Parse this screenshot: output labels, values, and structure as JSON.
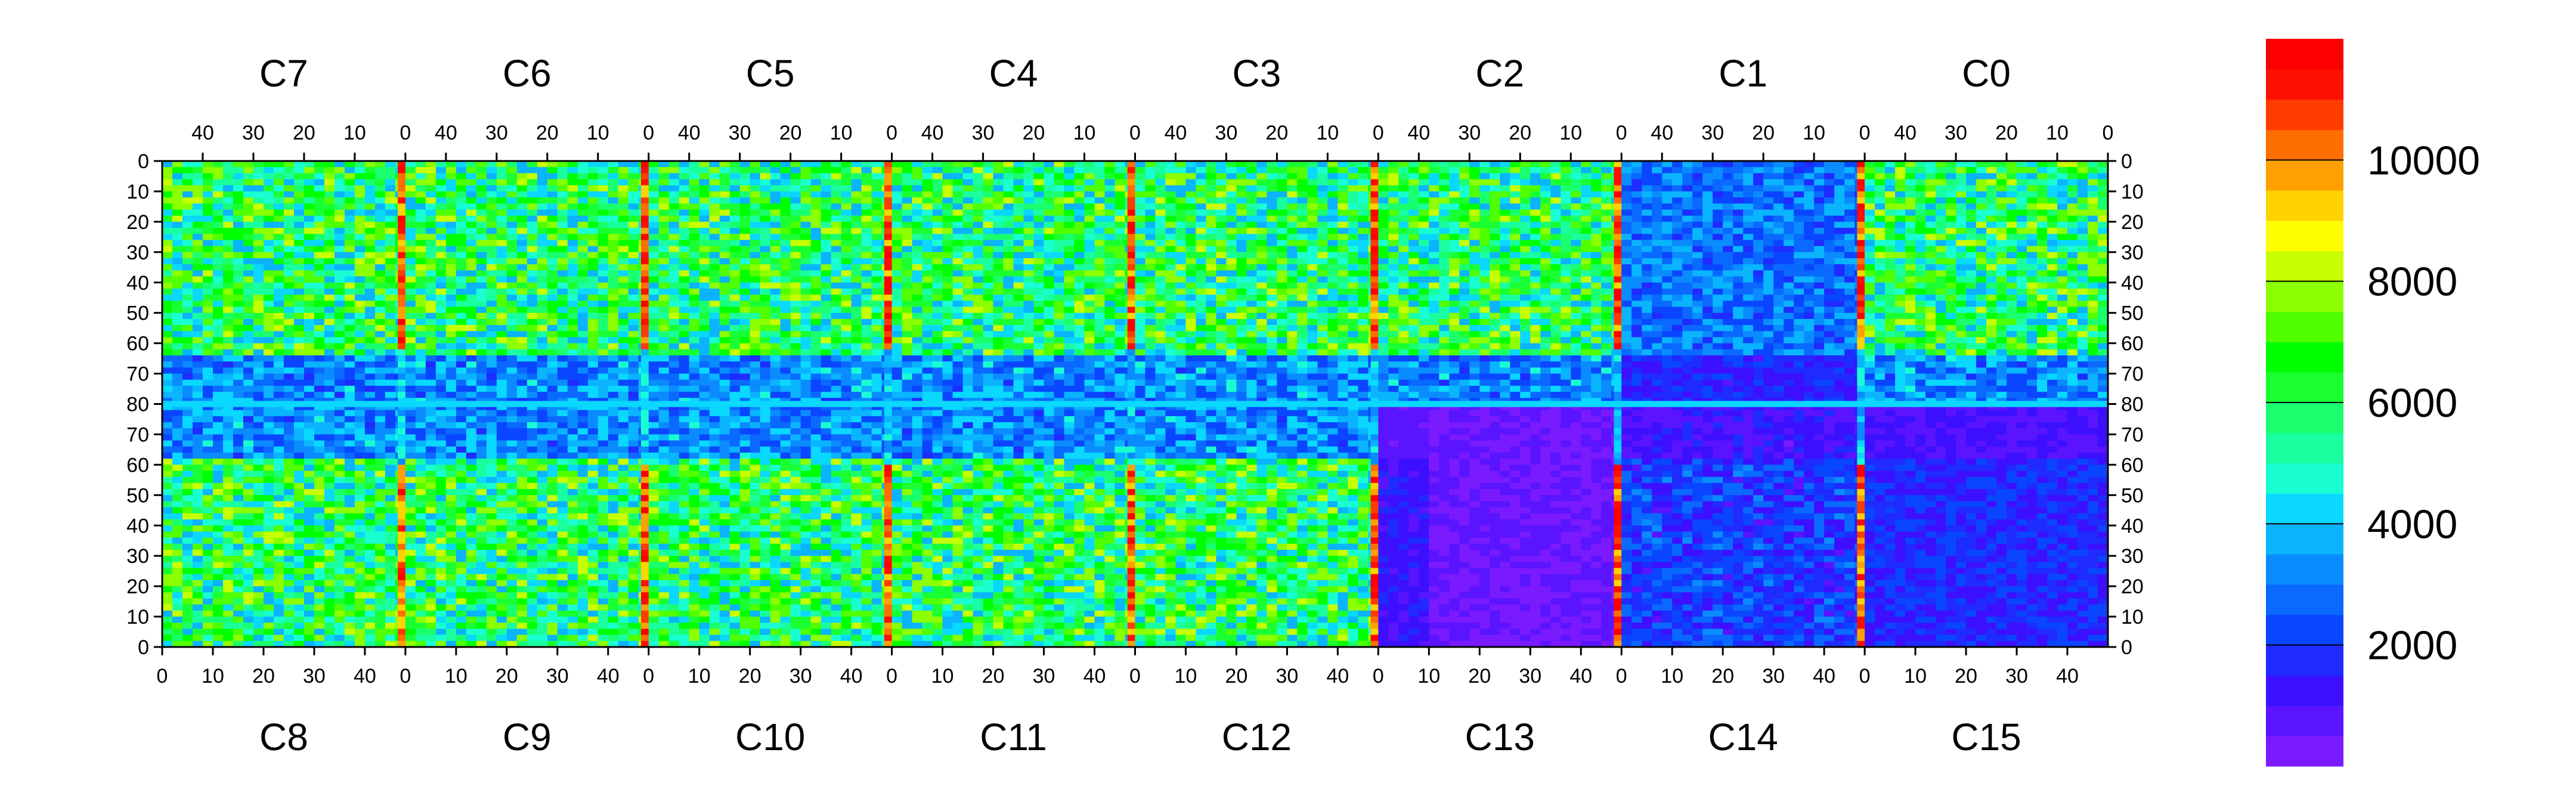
{
  "chart_data": {
    "type": "heatmap",
    "title": "",
    "xlabel": "",
    "ylabel": "",
    "top_panel_labels": [
      "C7",
      "C6",
      "C5",
      "C4",
      "C3",
      "C2",
      "C1",
      "C0"
    ],
    "bottom_panel_labels": [
      "C8",
      "C9",
      "C10",
      "C11",
      "C12",
      "C13",
      "C14",
      "C15"
    ],
    "top_x_ticks": [
      "40",
      "30",
      "20",
      "10",
      "0"
    ],
    "bottom_x_ticks": [
      "0",
      "10",
      "20",
      "30",
      "40"
    ],
    "y_ticks_top_half": [
      "0",
      "10",
      "20",
      "30",
      "40",
      "50",
      "60",
      "70",
      "80"
    ],
    "y_ticks_bottom_half": [
      "70",
      "60",
      "50",
      "40",
      "30",
      "20",
      "10",
      "0"
    ],
    "panel_width_channels": 48,
    "half_height_rows": 80,
    "colorbar": {
      "ticks": [
        2000,
        4000,
        6000,
        8000,
        10000
      ],
      "tick_labels": [
        "2000",
        "4000",
        "6000",
        "8000",
        "10000"
      ],
      "range": [
        0,
        12000
      ],
      "palette": [
        "#7a1aff",
        "#5a14ff",
        "#3c10ff",
        "#1f2bff",
        "#0a46ff",
        "#0a69ff",
        "#0a8cff",
        "#0ab4ff",
        "#0ad8ff",
        "#19ffd2",
        "#19ffa0",
        "#19ff6e",
        "#19ff32",
        "#00ff00",
        "#50ff00",
        "#8cff00",
        "#c8ff00",
        "#ffff00",
        "#ffd200",
        "#ffa000",
        "#ff6e00",
        "#ff3c00",
        "#ff0f00",
        "#ff0000"
      ]
    }
  }
}
